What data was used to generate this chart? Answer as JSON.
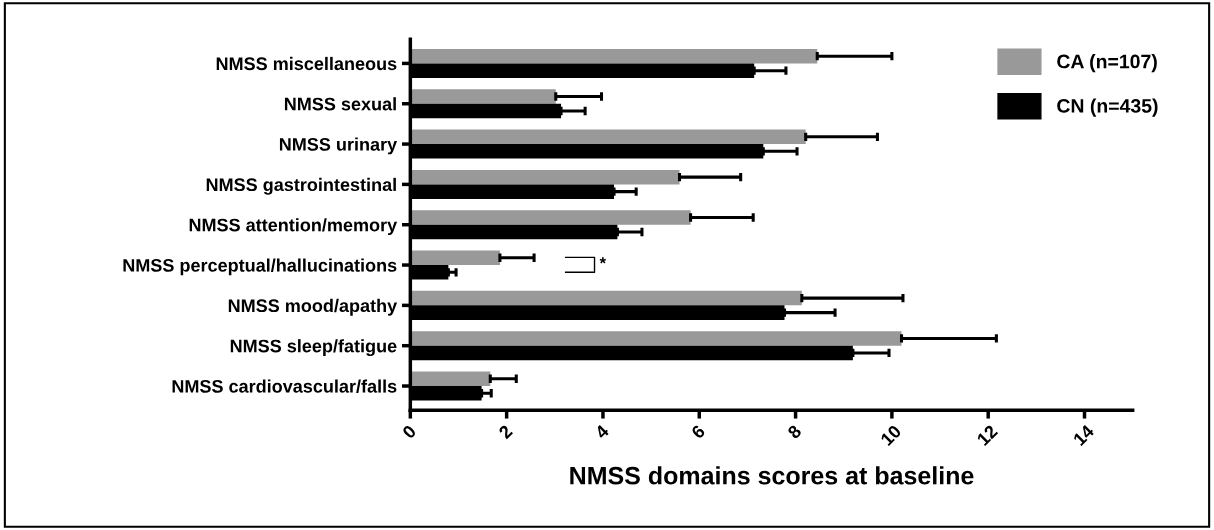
{
  "chart_data": {
    "type": "bar",
    "orientation": "horizontal",
    "xlabel": "NMSS domains scores at baseline",
    "categories": [
      "NMSS miscellaneous",
      "NMSS sexual",
      "NMSS urinary",
      "NMSS gastrointestinal",
      "NMSS attention/memory",
      "NMSS perceptual/hallucinations",
      "NMSS mood/apathy",
      "NMSS sleep/fatigue",
      "NMSS cardiovascular/falls"
    ],
    "series": [
      {
        "name": "CA (n=107)",
        "color": "#999999",
        "values": [
          8.45,
          3.02,
          8.21,
          5.59,
          5.82,
          1.86,
          8.13,
          10.2,
          1.66
        ],
        "errors": [
          [
            8.45,
            10.0
          ],
          [
            3.02,
            3.97
          ],
          [
            8.21,
            9.7
          ],
          [
            5.59,
            6.86
          ],
          [
            5.82,
            7.12
          ],
          [
            1.86,
            2.57
          ],
          [
            8.13,
            10.23
          ],
          [
            10.2,
            12.17
          ],
          [
            1.66,
            2.2
          ]
        ]
      },
      {
        "name": "CN (n=435)",
        "color": "#000000",
        "values": [
          7.14,
          3.13,
          7.33,
          4.23,
          4.3,
          0.79,
          7.77,
          9.19,
          1.48
        ],
        "errors": [
          [
            7.14,
            7.8
          ],
          [
            3.13,
            3.63
          ],
          [
            7.33,
            8.03
          ],
          [
            4.23,
            4.69
          ],
          [
            4.3,
            4.81
          ],
          [
            0.79,
            0.95
          ],
          [
            7.77,
            8.82
          ],
          [
            9.19,
            9.94
          ],
          [
            1.48,
            1.68
          ]
        ]
      }
    ],
    "xlim": [
      0,
      15
    ],
    "xticks": [
      0,
      2,
      4,
      6,
      8,
      10,
      12,
      14
    ],
    "annotations": [
      "*"
    ],
    "legend": "top right",
    "grid": false
  }
}
